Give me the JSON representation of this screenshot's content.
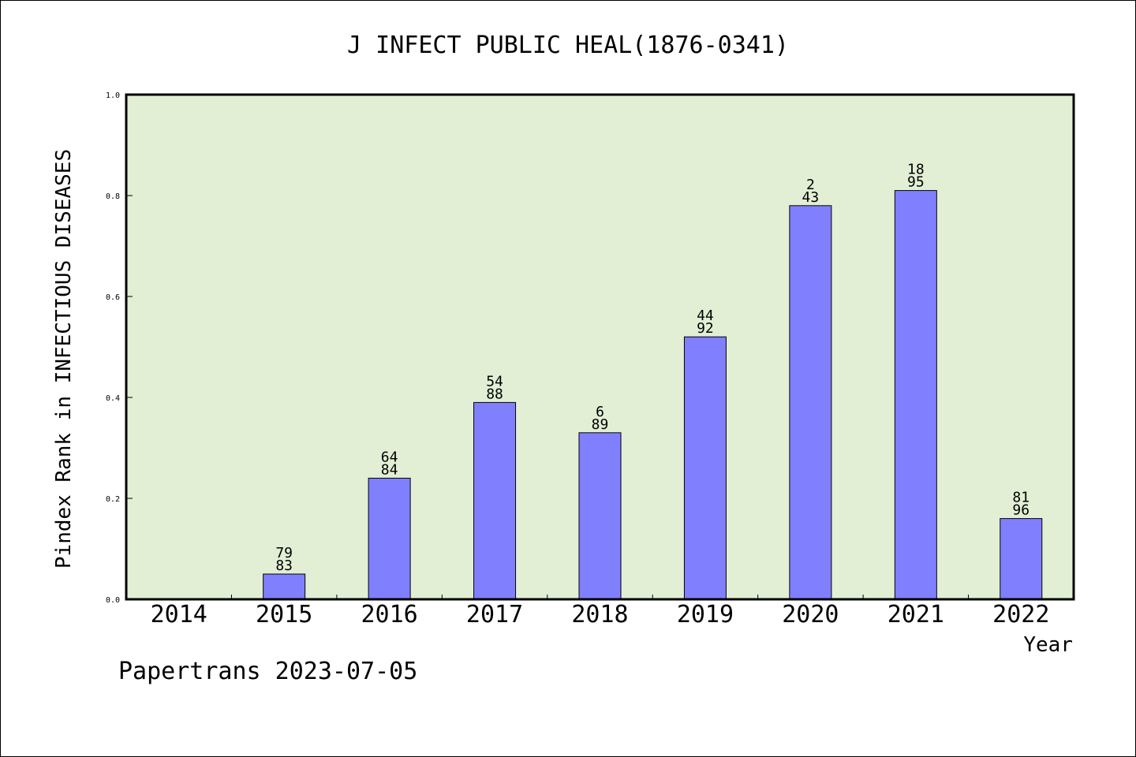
{
  "footer_text": "Papertrans 2023-07-05",
  "colors": {
    "plot_background": "#e2efd5",
    "bar_fill": "#8080ff",
    "bar_stroke": "#000000"
  },
  "chart_data": {
    "type": "bar",
    "title": "J INFECT PUBLIC HEAL(1876-0341)",
    "xlabel": "Year",
    "ylabel": "Pindex Rank in INFECTIOUS DISEASES",
    "ylim": [
      0,
      1.0
    ],
    "yticks": [
      "0.0",
      "0.2",
      "0.4",
      "0.6",
      "0.8",
      "1.0"
    ],
    "categories": [
      "2014",
      "2015",
      "2016",
      "2017",
      "2018",
      "2019",
      "2020",
      "2021",
      "2022"
    ],
    "values": [
      0,
      0.05,
      0.24,
      0.39,
      0.33,
      0.52,
      0.78,
      0.81,
      0.16
    ],
    "bar_labels_top": [
      "",
      "79",
      "64",
      "54",
      "6",
      "44",
      "2",
      "18",
      "81"
    ],
    "bar_labels_bottom": [
      "",
      "83",
      "84",
      "88",
      "89",
      "92",
      "43",
      "95",
      "96"
    ],
    "grid": false,
    "legend": "none"
  }
}
